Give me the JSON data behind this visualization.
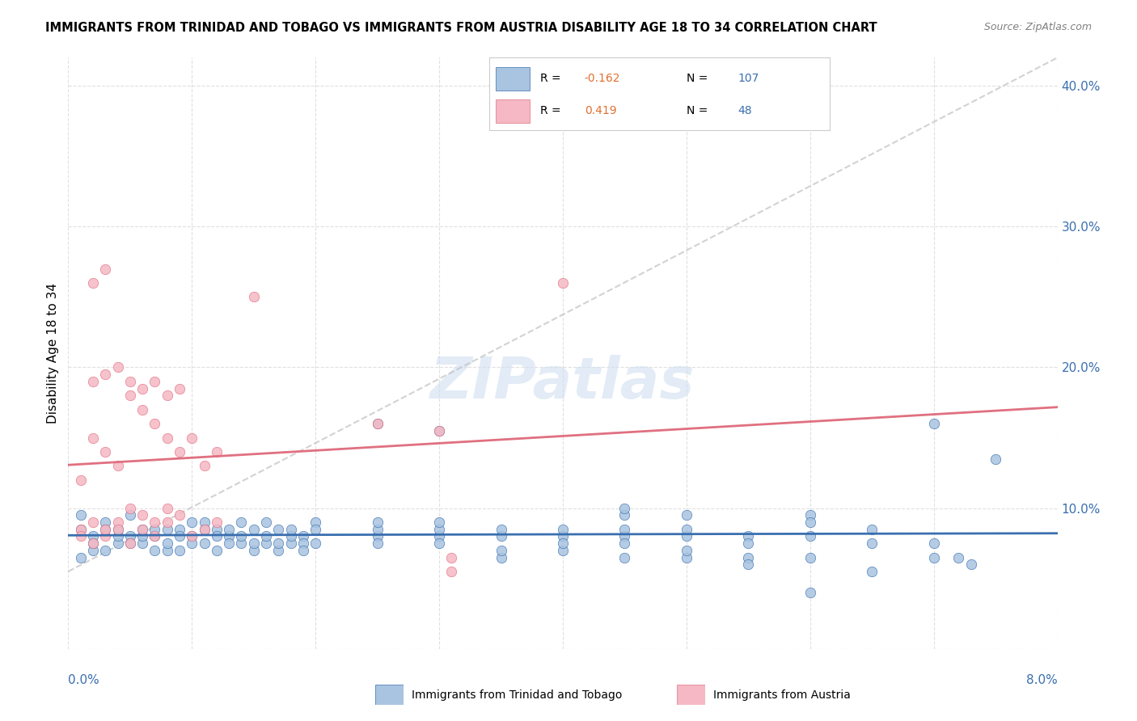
{
  "title": "IMMIGRANTS FROM TRINIDAD AND TOBAGO VS IMMIGRANTS FROM AUSTRIA DISABILITY AGE 18 TO 34 CORRELATION CHART",
  "source": "Source: ZipAtlas.com",
  "ylabel": "Disability Age 18 to 34",
  "x_range": [
    0.0,
    0.08
  ],
  "y_range": [
    0.0,
    0.42
  ],
  "series1_name": "Immigrants from Trinidad and Tobago",
  "series1_R": "-0.162",
  "series1_N": "107",
  "series1_color": "#a8c4e0",
  "series1_line_color": "#3a6faf",
  "series2_name": "Immigrants from Austria",
  "series2_R": "0.419",
  "series2_N": "48",
  "series2_color": "#f5b8c4",
  "series2_line_color": "#e07080",
  "watermark": "ZIPatlas",
  "background_color": "#ffffff",
  "grid_color": "#e0e0e0",
  "blue_scatter": [
    [
      0.001,
      0.085
    ],
    [
      0.002,
      0.08
    ],
    [
      0.003,
      0.09
    ],
    [
      0.004,
      0.075
    ],
    [
      0.005,
      0.08
    ],
    [
      0.006,
      0.075
    ],
    [
      0.007,
      0.08
    ],
    [
      0.008,
      0.085
    ],
    [
      0.009,
      0.07
    ],
    [
      0.01,
      0.08
    ],
    [
      0.011,
      0.09
    ],
    [
      0.012,
      0.085
    ],
    [
      0.013,
      0.08
    ],
    [
      0.014,
      0.075
    ],
    [
      0.015,
      0.085
    ],
    [
      0.016,
      0.09
    ],
    [
      0.017,
      0.07
    ],
    [
      0.018,
      0.075
    ],
    [
      0.019,
      0.08
    ],
    [
      0.02,
      0.09
    ],
    [
      0.001,
      0.095
    ],
    [
      0.002,
      0.07
    ],
    [
      0.003,
      0.085
    ],
    [
      0.004,
      0.08
    ],
    [
      0.005,
      0.095
    ],
    [
      0.006,
      0.08
    ],
    [
      0.007,
      0.085
    ],
    [
      0.008,
      0.07
    ],
    [
      0.009,
      0.085
    ],
    [
      0.01,
      0.09
    ],
    [
      0.011,
      0.075
    ],
    [
      0.012,
      0.08
    ],
    [
      0.013,
      0.085
    ],
    [
      0.014,
      0.09
    ],
    [
      0.015,
      0.07
    ],
    [
      0.016,
      0.075
    ],
    [
      0.017,
      0.085
    ],
    [
      0.018,
      0.08
    ],
    [
      0.019,
      0.075
    ],
    [
      0.02,
      0.085
    ],
    [
      0.001,
      0.065
    ],
    [
      0.002,
      0.075
    ],
    [
      0.003,
      0.07
    ],
    [
      0.004,
      0.085
    ],
    [
      0.005,
      0.075
    ],
    [
      0.006,
      0.085
    ],
    [
      0.007,
      0.07
    ],
    [
      0.008,
      0.075
    ],
    [
      0.009,
      0.08
    ],
    [
      0.01,
      0.075
    ],
    [
      0.011,
      0.085
    ],
    [
      0.012,
      0.07
    ],
    [
      0.013,
      0.075
    ],
    [
      0.014,
      0.08
    ],
    [
      0.015,
      0.075
    ],
    [
      0.016,
      0.08
    ],
    [
      0.017,
      0.075
    ],
    [
      0.018,
      0.085
    ],
    [
      0.019,
      0.07
    ],
    [
      0.02,
      0.075
    ],
    [
      0.025,
      0.08
    ],
    [
      0.025,
      0.085
    ],
    [
      0.025,
      0.09
    ],
    [
      0.025,
      0.075
    ],
    [
      0.03,
      0.08
    ],
    [
      0.03,
      0.085
    ],
    [
      0.03,
      0.09
    ],
    [
      0.03,
      0.075
    ],
    [
      0.035,
      0.08
    ],
    [
      0.035,
      0.085
    ],
    [
      0.035,
      0.065
    ],
    [
      0.035,
      0.07
    ],
    [
      0.04,
      0.08
    ],
    [
      0.04,
      0.085
    ],
    [
      0.04,
      0.07
    ],
    [
      0.04,
      0.075
    ],
    [
      0.045,
      0.08
    ],
    [
      0.045,
      0.085
    ],
    [
      0.045,
      0.065
    ],
    [
      0.045,
      0.075
    ],
    [
      0.05,
      0.08
    ],
    [
      0.05,
      0.065
    ],
    [
      0.05,
      0.07
    ],
    [
      0.05,
      0.085
    ],
    [
      0.055,
      0.08
    ],
    [
      0.055,
      0.075
    ],
    [
      0.055,
      0.065
    ],
    [
      0.06,
      0.08
    ],
    [
      0.06,
      0.065
    ],
    [
      0.065,
      0.075
    ],
    [
      0.065,
      0.085
    ],
    [
      0.07,
      0.065
    ],
    [
      0.07,
      0.075
    ],
    [
      0.025,
      0.16
    ],
    [
      0.03,
      0.155
    ],
    [
      0.045,
      0.095
    ],
    [
      0.045,
      0.1
    ],
    [
      0.05,
      0.095
    ],
    [
      0.06,
      0.095
    ],
    [
      0.06,
      0.09
    ],
    [
      0.07,
      0.16
    ],
    [
      0.075,
      0.135
    ],
    [
      0.055,
      0.06
    ],
    [
      0.06,
      0.04
    ],
    [
      0.065,
      0.055
    ],
    [
      0.072,
      0.065
    ],
    [
      0.073,
      0.06
    ]
  ],
  "pink_scatter": [
    [
      0.001,
      0.085
    ],
    [
      0.002,
      0.09
    ],
    [
      0.003,
      0.08
    ],
    [
      0.004,
      0.09
    ],
    [
      0.005,
      0.075
    ],
    [
      0.006,
      0.085
    ],
    [
      0.007,
      0.08
    ],
    [
      0.008,
      0.09
    ],
    [
      0.009,
      0.095
    ],
    [
      0.01,
      0.08
    ],
    [
      0.011,
      0.085
    ],
    [
      0.012,
      0.09
    ],
    [
      0.001,
      0.12
    ],
    [
      0.002,
      0.15
    ],
    [
      0.003,
      0.14
    ],
    [
      0.004,
      0.13
    ],
    [
      0.005,
      0.18
    ],
    [
      0.006,
      0.17
    ],
    [
      0.007,
      0.16
    ],
    [
      0.008,
      0.15
    ],
    [
      0.009,
      0.14
    ],
    [
      0.01,
      0.15
    ],
    [
      0.011,
      0.13
    ],
    [
      0.012,
      0.14
    ],
    [
      0.001,
      0.08
    ],
    [
      0.002,
      0.075
    ],
    [
      0.003,
      0.085
    ],
    [
      0.004,
      0.085
    ],
    [
      0.005,
      0.1
    ],
    [
      0.006,
      0.095
    ],
    [
      0.007,
      0.09
    ],
    [
      0.008,
      0.1
    ],
    [
      0.002,
      0.26
    ],
    [
      0.003,
      0.27
    ],
    [
      0.015,
      0.25
    ],
    [
      0.04,
      0.26
    ],
    [
      0.002,
      0.19
    ],
    [
      0.003,
      0.195
    ],
    [
      0.004,
      0.2
    ],
    [
      0.005,
      0.19
    ],
    [
      0.006,
      0.185
    ],
    [
      0.007,
      0.19
    ],
    [
      0.008,
      0.18
    ],
    [
      0.009,
      0.185
    ],
    [
      0.025,
      0.16
    ],
    [
      0.03,
      0.155
    ],
    [
      0.031,
      0.065
    ],
    [
      0.031,
      0.055
    ]
  ]
}
